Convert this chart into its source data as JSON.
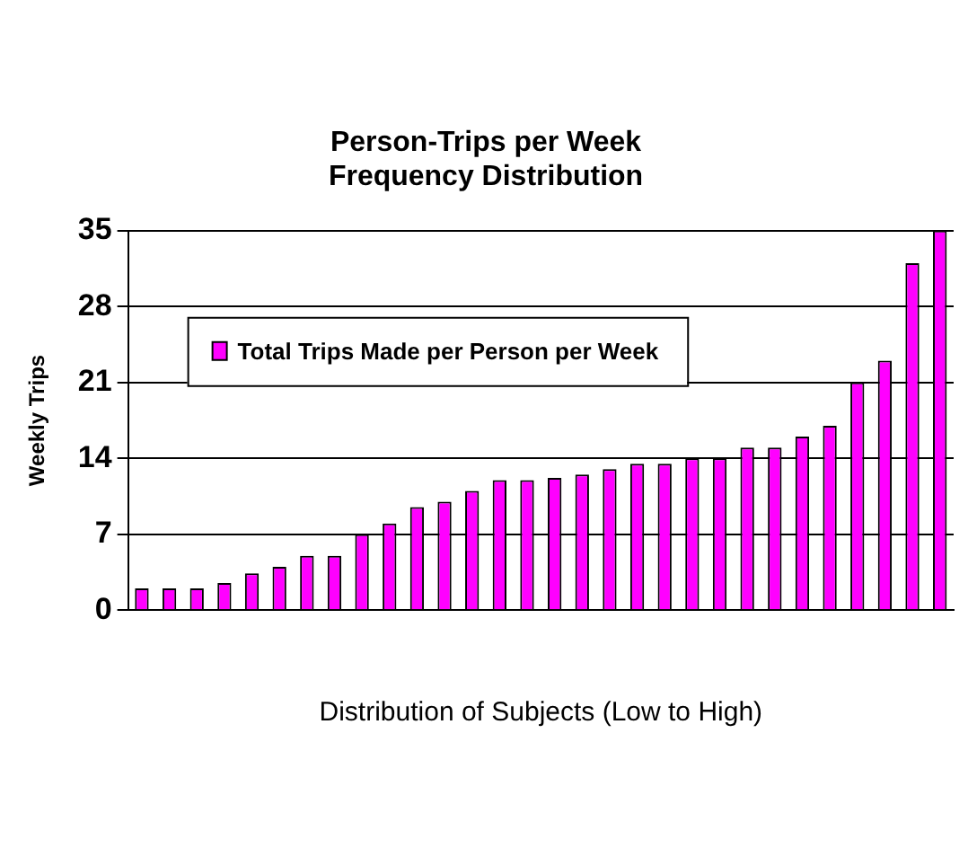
{
  "chart_data": {
    "type": "bar",
    "title": [
      "Person-Trips per Week",
      "Frequency Distribution"
    ],
    "xlabel": "Distribution of Subjects (Low to High)",
    "ylabel": "Weekly Trips",
    "categories": [
      null,
      null,
      null,
      null,
      null,
      null,
      null,
      null,
      null,
      null,
      null,
      null,
      null,
      null,
      null,
      null,
      null,
      null,
      null,
      null,
      null,
      null,
      null,
      null,
      null,
      null,
      null,
      null,
      null,
      null
    ],
    "series": [
      {
        "name": "Total Trips Made per Person per Week",
        "color": "#ff00ff",
        "values": [
          2,
          2,
          2,
          2.5,
          3.4,
          4,
          5,
          5,
          7,
          8,
          9.5,
          10,
          11,
          12,
          12,
          12.2,
          12.5,
          13,
          13.5,
          13.5,
          14,
          14,
          15,
          15,
          16,
          17,
          21,
          23,
          32,
          35
        ]
      }
    ],
    "ylim": [
      0,
      35
    ],
    "yticks": [
      0,
      7,
      14,
      21,
      28,
      35
    ],
    "grid": "y",
    "legend": "top left"
  }
}
